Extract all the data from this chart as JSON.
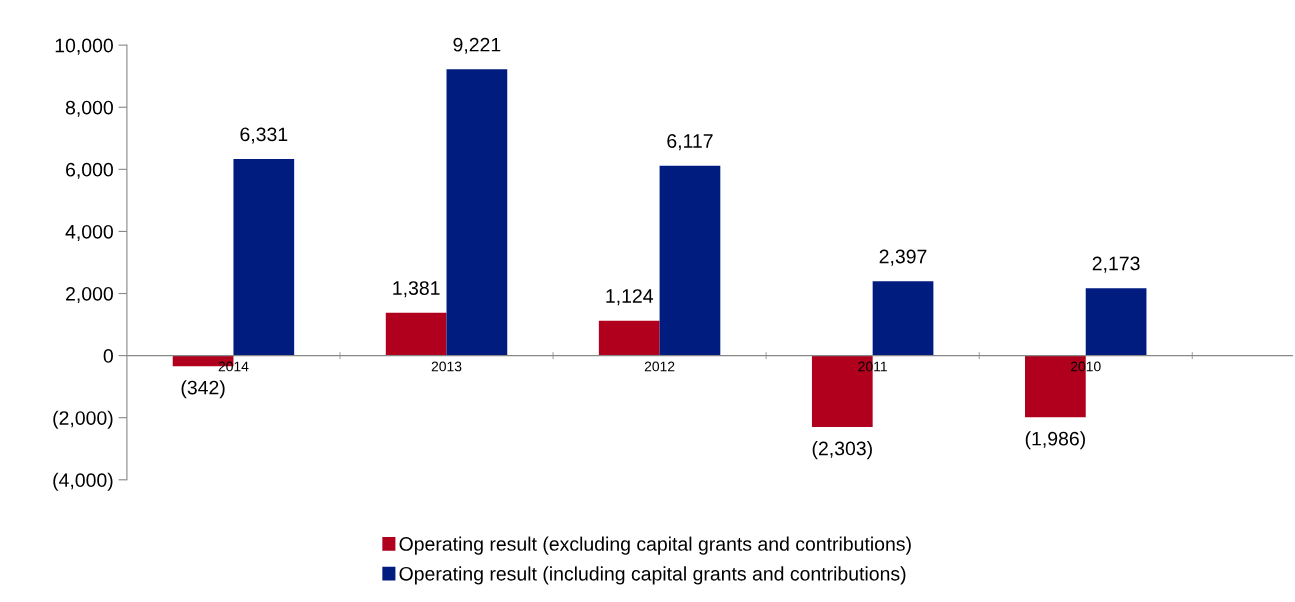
{
  "chart_data": {
    "type": "bar",
    "categories": [
      "2014",
      "2013",
      "2012",
      "2011",
      "2010"
    ],
    "series": [
      {
        "name": "Operating result (excluding capital grants and contributions)",
        "color": "#b0001e",
        "values": [
          -342,
          1381,
          1124,
          -2303,
          -1986
        ],
        "value_labels": [
          "(342)",
          "1,381",
          "1,124",
          "(2,303)",
          "(1,986)"
        ]
      },
      {
        "name": "Operating result (including capital grants and contributions)",
        "color": "#001c7f",
        "values": [
          6331,
          9221,
          6117,
          2397,
          2173
        ],
        "value_labels": [
          "6,331",
          "9,221",
          "6,117",
          "2,397",
          "2,173"
        ]
      }
    ],
    "ylim": [
      -4000,
      10000
    ],
    "yticks": [
      {
        "value": -4000,
        "label": "(4,000)"
      },
      {
        "value": -2000,
        "label": "(2,000)"
      },
      0,
      {
        "value": 2000,
        "label": "2,000"
      },
      {
        "value": 4000,
        "label": "4,000"
      },
      {
        "value": 6000,
        "label": "6,000"
      },
      {
        "value": 8000,
        "label": "8,000"
      },
      {
        "value": 10000,
        "label": "10,000"
      }
    ],
    "grid": false,
    "legend": "bottom"
  }
}
